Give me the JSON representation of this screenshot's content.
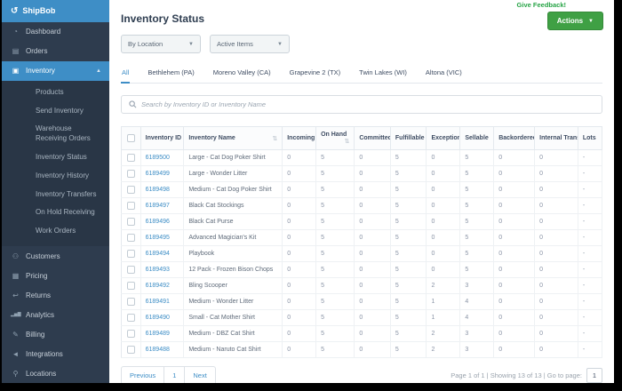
{
  "colors": {
    "accent_blue": "#3e8ec6",
    "sidebar_bg": "#2e3c4e",
    "submenu_bg": "#293646",
    "green": "#3fa044",
    "feedback_green": "#27a446"
  },
  "sidebar": {
    "logo": "ShipBob",
    "items": [
      {
        "label": "Dashboard",
        "icon": "dashboard-icon",
        "glyph": "◔"
      },
      {
        "label": "Orders",
        "icon": "orders-icon",
        "glyph": "▤"
      },
      {
        "label": "Inventory",
        "icon": "inventory-icon",
        "glyph": "▣",
        "active": true,
        "expanded": true
      },
      {
        "label": "Customers",
        "icon": "customers-icon",
        "glyph": "⚇"
      },
      {
        "label": "Pricing",
        "icon": "pricing-icon",
        "glyph": "▦"
      },
      {
        "label": "Returns",
        "icon": "returns-icon",
        "glyph": "↩"
      },
      {
        "label": "Analytics",
        "icon": "analytics-icon",
        "glyph": "▂▅▇",
        "bars": true
      },
      {
        "label": "Billing",
        "icon": "billing-icon",
        "glyph": "✎"
      },
      {
        "label": "Integrations",
        "icon": "integrations-icon",
        "glyph": "◄"
      },
      {
        "label": "Locations",
        "icon": "locations-icon",
        "glyph": "⚲"
      }
    ],
    "inventory_subitems": [
      "Products",
      "Send Inventory",
      "Warehouse Receiving Orders",
      "Inventory Status",
      "Inventory History",
      "Inventory Transfers",
      "On Hold Receiving",
      "Work Orders"
    ]
  },
  "header": {
    "title": "Inventory Status",
    "feedback_link": "Give Feedback!",
    "actions_label": "Actions",
    "filters": [
      {
        "value": "By Location"
      },
      {
        "value": "Active Items"
      }
    ]
  },
  "tabs": [
    {
      "label": "All",
      "active": true
    },
    {
      "label": "Bethlehem (PA)"
    },
    {
      "label": "Moreno Valley (CA)"
    },
    {
      "label": "Grapevine 2 (TX)"
    },
    {
      "label": "Twin Lakes (WI)"
    },
    {
      "label": "Altona (VIC)"
    }
  ],
  "search": {
    "placeholder": "Search by Inventory ID or Inventory Name"
  },
  "table": {
    "columns": [
      {
        "label": "Inventory ID",
        "sortable": false,
        "width": "9%"
      },
      {
        "label": "Inventory Name",
        "sortable": true,
        "width": "20.5%"
      },
      {
        "label": "Incoming",
        "sortable": false,
        "width": "7%"
      },
      {
        "label": "On Hand",
        "sortable": true,
        "width": "8%"
      },
      {
        "label": "Committed",
        "sortable": false,
        "width": "7.5%"
      },
      {
        "label": "Fulfillable",
        "sortable": false,
        "width": "7.5%"
      },
      {
        "label": "Exception",
        "sortable": false,
        "width": "7%"
      },
      {
        "label": "Sellable",
        "sortable": false,
        "width": "7%"
      },
      {
        "label": "Backordered",
        "sortable": false,
        "width": "8.5%"
      },
      {
        "label": "Internal Transfer",
        "sortable": false,
        "width": "9%"
      },
      {
        "label": "Lots",
        "sortable": false,
        "width": "5%"
      }
    ],
    "checkbox_col_width": "4%",
    "rows": [
      {
        "id": "6189500",
        "name": "Large - Cat Dog Poker Shirt",
        "values": [
          "0",
          "5",
          "0",
          "5",
          "0",
          "5",
          "0",
          "0",
          "-"
        ]
      },
      {
        "id": "6189499",
        "name": "Large - Wonder Litter",
        "values": [
          "0",
          "5",
          "0",
          "5",
          "0",
          "5",
          "0",
          "0",
          "-"
        ]
      },
      {
        "id": "6189498",
        "name": "Medium - Cat Dog Poker Shirt",
        "values": [
          "0",
          "5",
          "0",
          "5",
          "0",
          "5",
          "0",
          "0",
          "-"
        ]
      },
      {
        "id": "6189497",
        "name": "Black Cat Stockings",
        "values": [
          "0",
          "5",
          "0",
          "5",
          "0",
          "5",
          "0",
          "0",
          "-"
        ]
      },
      {
        "id": "6189496",
        "name": "Black Cat Purse",
        "values": [
          "0",
          "5",
          "0",
          "5",
          "0",
          "5",
          "0",
          "0",
          "-"
        ]
      },
      {
        "id": "6189495",
        "name": "Advanced Magician's Kit",
        "values": [
          "0",
          "5",
          "0",
          "5",
          "0",
          "5",
          "0",
          "0",
          "-"
        ]
      },
      {
        "id": "6189494",
        "name": "Playbook",
        "values": [
          "0",
          "5",
          "0",
          "5",
          "0",
          "5",
          "0",
          "0",
          "-"
        ]
      },
      {
        "id": "6189493",
        "name": "12 Pack - Frozen Bison Chops",
        "values": [
          "0",
          "5",
          "0",
          "5",
          "0",
          "5",
          "0",
          "0",
          "-"
        ]
      },
      {
        "id": "6189492",
        "name": "Bling Scooper",
        "values": [
          "0",
          "5",
          "0",
          "5",
          "2",
          "3",
          "0",
          "0",
          "-"
        ]
      },
      {
        "id": "6189491",
        "name": "Medium - Wonder Litter",
        "values": [
          "0",
          "5",
          "0",
          "5",
          "1",
          "4",
          "0",
          "0",
          "-"
        ]
      },
      {
        "id": "6189490",
        "name": "Small - Cat Mother Shirt",
        "values": [
          "0",
          "5",
          "0",
          "5",
          "1",
          "4",
          "0",
          "0",
          "-"
        ]
      },
      {
        "id": "6189489",
        "name": "Medium - DBZ Cat Shirt",
        "values": [
          "0",
          "5",
          "0",
          "5",
          "2",
          "3",
          "0",
          "0",
          "-"
        ]
      },
      {
        "id": "6189488",
        "name": "Medium - Naruto Cat Shirt",
        "values": [
          "0",
          "5",
          "0",
          "5",
          "2",
          "3",
          "0",
          "0",
          "-"
        ]
      }
    ]
  },
  "pagination": {
    "previous_label": "Previous",
    "current_page": "1",
    "next_label": "Next",
    "summary": "Page 1 of 1 | Showing 13 of 13 | Go to page:",
    "goto_value": "1"
  }
}
